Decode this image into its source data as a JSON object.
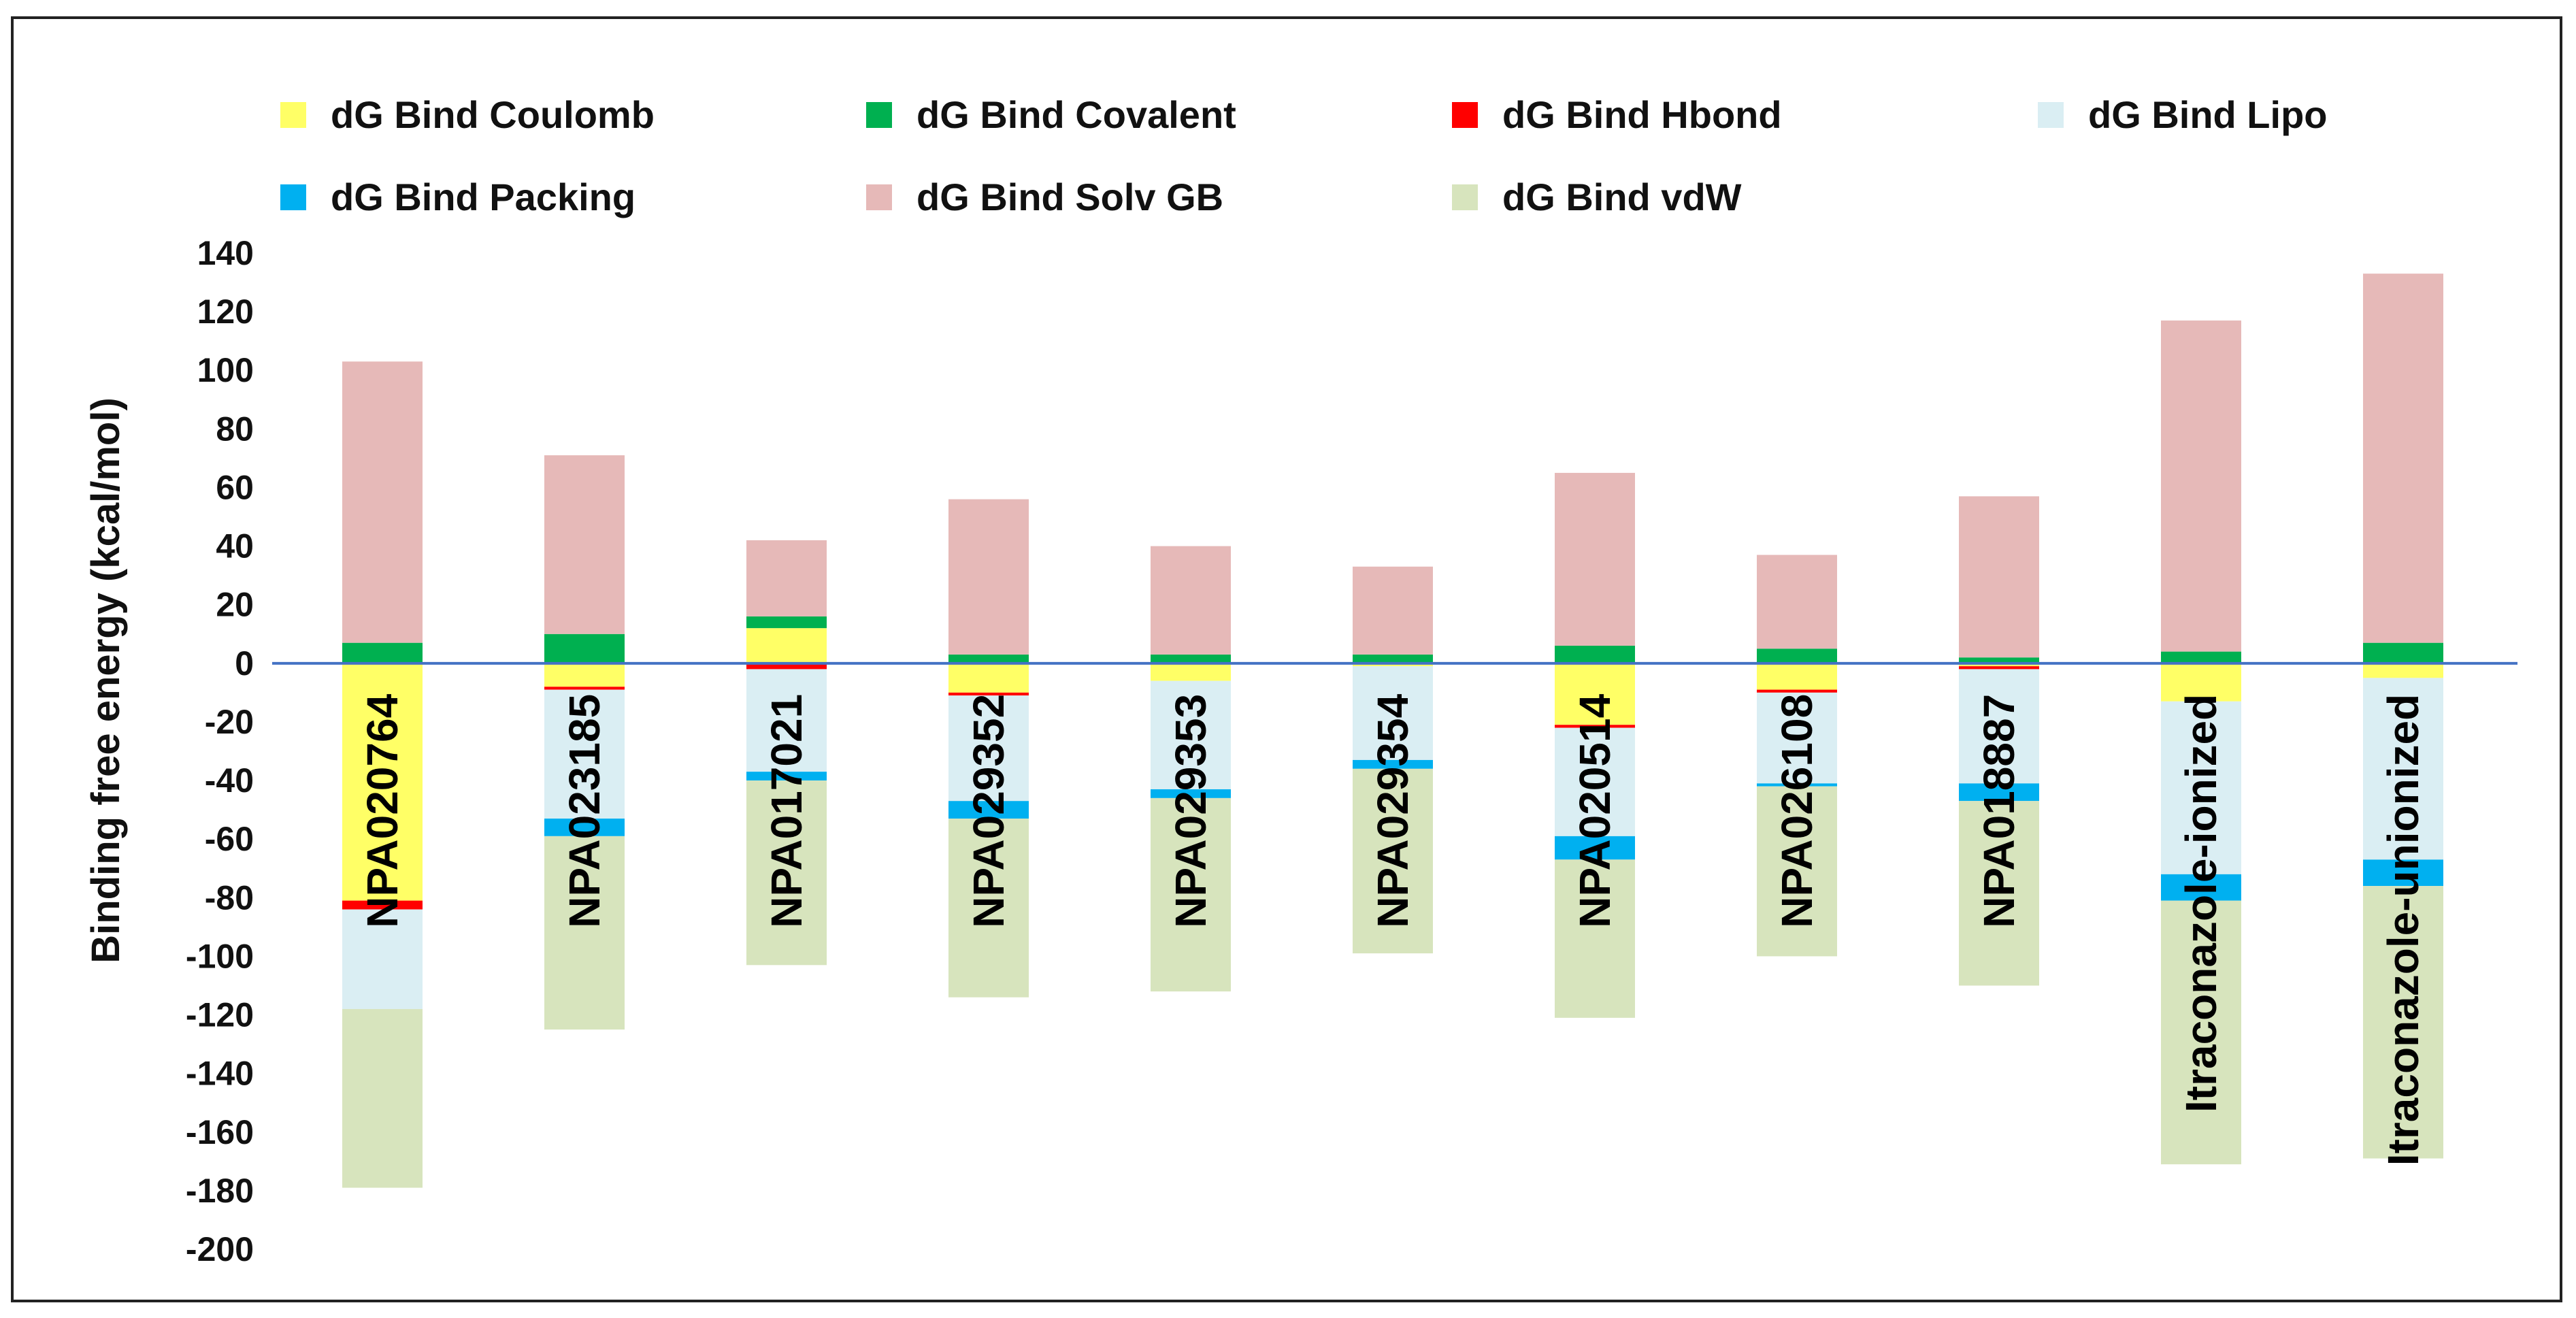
{
  "chart_data": {
    "type": "bar",
    "stacked": true,
    "title": "",
    "xlabel": "",
    "ylabel": "Binding free energy (kcal/mol)",
    "ylim": [
      -200,
      140
    ],
    "yticks": [
      140,
      120,
      100,
      80,
      60,
      40,
      20,
      0,
      -20,
      -40,
      -60,
      -80,
      -100,
      -120,
      -140,
      -160,
      -180,
      -200
    ],
    "grid": false,
    "legend_position": "top",
    "zero_line_color": "#4472C4",
    "categories": [
      "NPA020764",
      "NPA023185",
      "NPA017021",
      "NPA029352",
      "NPA029353",
      "NPA029354",
      "NPA020514",
      "NPA026108",
      "NPA018887",
      "Itraconazole-ionized",
      "Itraconazole-unionized"
    ],
    "series": [
      {
        "name": "dG Bind Coulomb",
        "color": "#FFFF66",
        "values": [
          -81,
          -8,
          12,
          -10,
          -6,
          -1,
          -21,
          -9,
          -1,
          -13,
          -5
        ]
      },
      {
        "name": "dG Bind Covalent",
        "color": "#00B050",
        "values": [
          7,
          10,
          4,
          3,
          3,
          3,
          6,
          5,
          2,
          4,
          7
        ]
      },
      {
        "name": "dG Bind Hbond",
        "color": "#FF0000",
        "values": [
          -3,
          -1,
          -2,
          -1,
          0,
          0,
          -1,
          -1,
          -1,
          0,
          0
        ]
      },
      {
        "name": "dG Bind Lipo",
        "color": "#DAEEF3",
        "values": [
          -34,
          -44,
          -35,
          -36,
          -37,
          -32,
          -37,
          -31,
          -39,
          -59,
          -62
        ]
      },
      {
        "name": "dG Bind Packing",
        "color": "#00B0F0",
        "values": [
          0,
          -6,
          -3,
          -6,
          -3,
          -3,
          -8,
          -1,
          -6,
          -9,
          -9
        ]
      },
      {
        "name": "dG Bind Solv GB",
        "color": "#E6B9B8",
        "values": [
          96,
          61,
          26,
          53,
          37,
          30,
          59,
          32,
          55,
          113,
          126
        ]
      },
      {
        "name": "dG Bind vdW",
        "color": "#D7E4BD",
        "values": [
          -61,
          -66,
          -63,
          -61,
          -66,
          -63,
          -54,
          -58,
          -63,
          -90,
          -93
        ]
      }
    ]
  }
}
